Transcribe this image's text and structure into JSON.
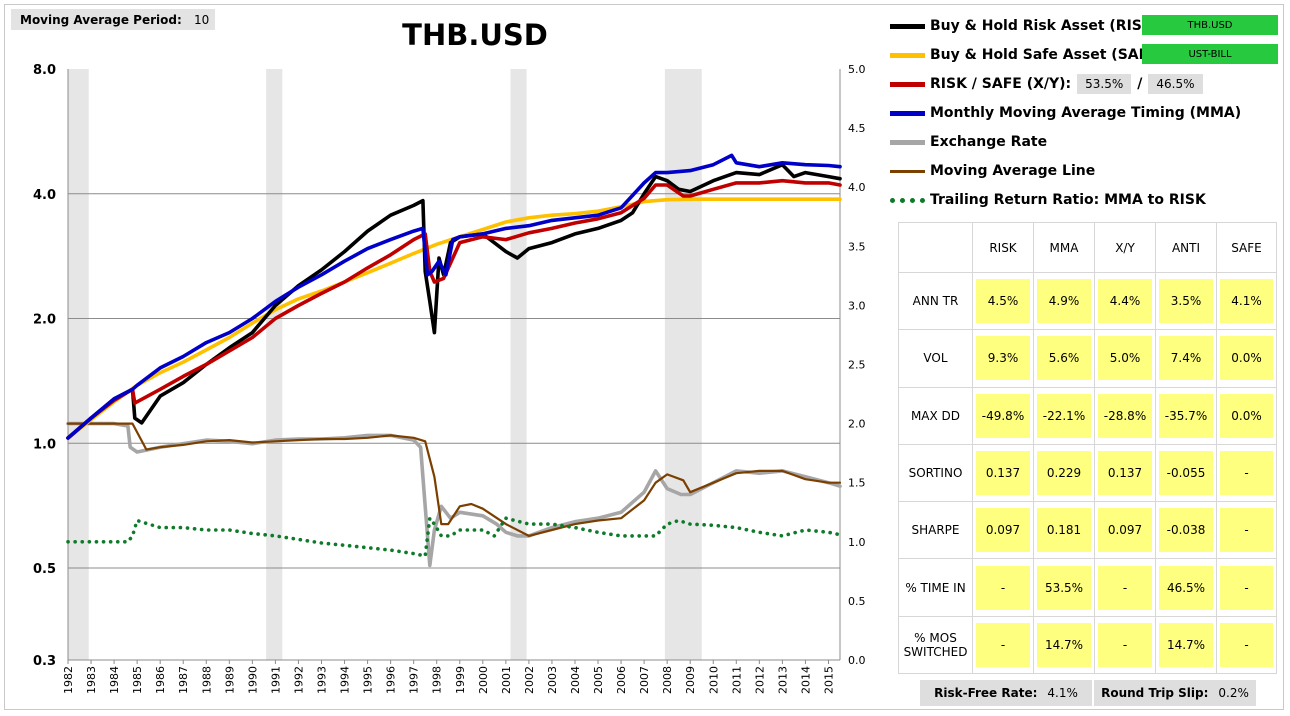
{
  "moving_average": {
    "label": "Moving Average Period:",
    "value": "10"
  },
  "legend": {
    "risk_label": "Buy & Hold Risk Asset (RISK):",
    "risk_tag": "THB.USD",
    "safe_label": "Buy & Hold Safe Asset (SAFE):",
    "safe_tag": "UST-BILL",
    "xy_label": "RISK / SAFE (X/Y):",
    "xy_risk": "53.5%",
    "xy_sep": "/",
    "xy_safe": "46.5%",
    "mma_label": "Monthly Moving Average Timing (MMA)",
    "fx_label": "Exchange Rate",
    "mal_label": "Moving Average Line",
    "trr_label": "Trailing Return Ratio: MMA to RISK"
  },
  "colors": {
    "risk": "#000000",
    "safe": "#ffc000",
    "xy": "#c00000",
    "mma": "#0000c8",
    "fx": "#a6a6a6",
    "mal": "#7b3f00",
    "trr": "#0e7a2a",
    "tag": "#27c93f",
    "cell": "#ffff7f",
    "recession": "#e6e6e6"
  },
  "stats": {
    "headers": [
      "RISK",
      "MMA",
      "X/Y",
      "ANTI",
      "SAFE"
    ],
    "rows": [
      {
        "label": "ANN TR",
        "values": [
          "4.5%",
          "4.9%",
          "4.4%",
          "3.5%",
          "4.1%"
        ]
      },
      {
        "label": "VOL",
        "values": [
          "9.3%",
          "5.6%",
          "5.0%",
          "7.4%",
          "0.0%"
        ]
      },
      {
        "label": "MAX DD",
        "values": [
          "-49.8%",
          "-22.1%",
          "-28.8%",
          "-35.7%",
          "0.0%"
        ]
      },
      {
        "label": "SORTINO",
        "values": [
          "0.137",
          "0.229",
          "0.137",
          "-0.055",
          "-"
        ]
      },
      {
        "label": "SHARPE",
        "values": [
          "0.097",
          "0.181",
          "0.097",
          "-0.038",
          "-"
        ]
      },
      {
        "label": "% TIME IN",
        "values": [
          "-",
          "53.5%",
          "-",
          "46.5%",
          "-"
        ]
      },
      {
        "label": "% MOS SWITCHED",
        "values": [
          "-",
          "14.7%",
          "-",
          "14.7%",
          "-"
        ]
      }
    ]
  },
  "footer": {
    "rf_label": "Risk-Free Rate:",
    "rf_value": "4.1%",
    "slip_label": "Round Trip Slip:",
    "slip_value": "0.2%"
  },
  "chart_data": {
    "type": "line",
    "title": "THB.USD",
    "x_ticks": [
      "1982",
      "1983",
      "1984",
      "1985",
      "1986",
      "1987",
      "1988",
      "1989",
      "1990",
      "1991",
      "1992",
      "1993",
      "1994",
      "1995",
      "1996",
      "1997",
      "1998",
      "1999",
      "2000",
      "2001",
      "2002",
      "2003",
      "2004",
      "2005",
      "2006",
      "2007",
      "2008",
      "2009",
      "2010",
      "2011",
      "2012",
      "2013",
      "2014",
      "2015"
    ],
    "xlim": [
      1982,
      2015.5
    ],
    "left_axis": {
      "scale": "log",
      "ylim": [
        0.3,
        8.0
      ],
      "ticks": [
        "0.3",
        "0.5",
        "1.0",
        "2.0",
        "4.0",
        "8.0"
      ],
      "tick_values": [
        0.3,
        0.5,
        1,
        2,
        4,
        8
      ]
    },
    "right_axis": {
      "scale": "linear",
      "ylim": [
        0,
        5
      ],
      "ticks": [
        "0.0",
        "0.5",
        "1.0",
        "1.5",
        "2.0",
        "2.5",
        "3.0",
        "3.5",
        "4.0",
        "4.5",
        "5.0"
      ]
    },
    "grid": "horizontal",
    "recession_bands": [
      [
        1982.0,
        1982.9
      ],
      [
        1990.6,
        1991.3
      ],
      [
        2001.2,
        2001.9
      ],
      [
        2007.9,
        2009.5
      ]
    ],
    "series": [
      {
        "name": "Buy & Hold Risk Asset (RISK)",
        "axis": "left",
        "key": "risk",
        "x": [
          1982,
          1983,
          1984,
          1984.8,
          1984.9,
          1985.2,
          1986,
          1987,
          1988,
          1989,
          1990,
          1991,
          1992,
          1993,
          1994,
          1995,
          1996,
          1997,
          1997.4,
          1997.5,
          1997.7,
          1997.9,
          1998.1,
          1998.3,
          1998.6,
          1999,
          2000,
          2001,
          2001.5,
          2002,
          2003,
          2004,
          2005,
          2006,
          2006.5,
          2007,
          2007.5,
          2008,
          2008.5,
          2009,
          2010,
          2011,
          2012,
          2013,
          2013.5,
          2014,
          2015,
          2015.5
        ],
        "values": [
          1.03,
          1.15,
          1.28,
          1.35,
          1.15,
          1.12,
          1.3,
          1.4,
          1.55,
          1.7,
          1.85,
          2.15,
          2.4,
          2.62,
          2.9,
          3.25,
          3.55,
          3.75,
          3.85,
          2.6,
          2.2,
          1.85,
          2.8,
          2.55,
          3.05,
          3.15,
          3.2,
          2.9,
          2.8,
          2.95,
          3.05,
          3.2,
          3.3,
          3.45,
          3.6,
          4.0,
          4.4,
          4.3,
          4.1,
          4.05,
          4.3,
          4.5,
          4.45,
          4.7,
          4.4,
          4.5,
          4.4,
          4.35
        ]
      },
      {
        "name": "Buy & Hold Safe Asset (SAFE)",
        "axis": "left",
        "key": "safe",
        "x": [
          1982,
          1983,
          1984,
          1985,
          1986,
          1987,
          1988,
          1989,
          1990,
          1991,
          1992,
          1993,
          1994,
          1995,
          1996,
          1997,
          1998,
          1999,
          2000,
          2001,
          2002,
          2003,
          2004,
          2005,
          2006,
          2007,
          2008,
          2009,
          2010,
          2011,
          2012,
          2013,
          2014,
          2015,
          2015.5
        ],
        "values": [
          1.03,
          1.14,
          1.26,
          1.38,
          1.48,
          1.57,
          1.68,
          1.8,
          1.95,
          2.1,
          2.23,
          2.33,
          2.45,
          2.58,
          2.72,
          2.87,
          3.02,
          3.15,
          3.28,
          3.42,
          3.5,
          3.55,
          3.58,
          3.63,
          3.72,
          3.83,
          3.87,
          3.88,
          3.88,
          3.88,
          3.88,
          3.88,
          3.88,
          3.88,
          3.88
        ]
      },
      {
        "name": "RISK / SAFE (X/Y)",
        "axis": "left",
        "key": "xy",
        "x": [
          1982,
          1983,
          1984,
          1984.8,
          1984.9,
          1986,
          1987,
          1988,
          1989,
          1990,
          1991,
          1992,
          1993,
          1994,
          1995,
          1996,
          1997,
          1997.5,
          1997.7,
          1997.9,
          1998.3,
          1999,
          2000,
          2001,
          2002,
          2003,
          2004,
          2005,
          2006,
          2007,
          2007.5,
          2008,
          2008.7,
          2009,
          2010,
          2011,
          2012,
          2013,
          2014,
          2015,
          2015.5
        ],
        "values": [
          1.03,
          1.15,
          1.27,
          1.35,
          1.25,
          1.35,
          1.45,
          1.55,
          1.67,
          1.8,
          2.0,
          2.15,
          2.3,
          2.45,
          2.65,
          2.85,
          3.1,
          3.2,
          2.6,
          2.45,
          2.5,
          3.05,
          3.15,
          3.1,
          3.22,
          3.3,
          3.4,
          3.48,
          3.6,
          3.9,
          4.2,
          4.2,
          3.95,
          3.95,
          4.1,
          4.25,
          4.25,
          4.3,
          4.25,
          4.25,
          4.2
        ]
      },
      {
        "name": "Monthly Moving Average Timing (MMA)",
        "axis": "left",
        "key": "mma",
        "x": [
          1982,
          1983,
          1984,
          1984.8,
          1985,
          1986,
          1987,
          1988,
          1989,
          1990,
          1991,
          1992,
          1993,
          1994,
          1995,
          1996,
          1997,
          1997.4,
          1997.6,
          1997.8,
          1998.1,
          1998.4,
          1998.7,
          1999,
          2000,
          2001,
          2002,
          2003,
          2004,
          2005,
          2006,
          2007,
          2007.5,
          2008,
          2009,
          2010,
          2010.8,
          2011,
          2012,
          2013,
          2014,
          2015,
          2015.5
        ],
        "values": [
          1.03,
          1.15,
          1.28,
          1.35,
          1.38,
          1.52,
          1.62,
          1.75,
          1.85,
          2.0,
          2.2,
          2.38,
          2.55,
          2.75,
          2.95,
          3.1,
          3.25,
          3.3,
          2.55,
          2.6,
          2.75,
          2.55,
          3.1,
          3.15,
          3.2,
          3.3,
          3.35,
          3.45,
          3.5,
          3.55,
          3.7,
          4.25,
          4.5,
          4.5,
          4.55,
          4.7,
          4.95,
          4.75,
          4.65,
          4.75,
          4.7,
          4.68,
          4.65
        ]
      },
      {
        "name": "Exchange Rate",
        "axis": "right",
        "key": "fx",
        "x": [
          1982,
          1983,
          1984,
          1984.6,
          1984.7,
          1985,
          1986,
          1987,
          1988,
          1989,
          1990,
          1991,
          1992,
          1993,
          1994,
          1995,
          1996,
          1997,
          1997.3,
          1997.5,
          1997.7,
          1997.9,
          1998.2,
          1998.6,
          1999,
          2000,
          2000.6,
          2001,
          2001.5,
          2002,
          2003,
          2004,
          2005,
          2006,
          2007,
          2007.5,
          2008,
          2008.6,
          2009,
          2010,
          2011,
          2012,
          2013,
          2014,
          2015,
          2015.5
        ],
        "values": [
          2.0,
          2.0,
          2.0,
          1.98,
          1.8,
          1.76,
          1.8,
          1.83,
          1.86,
          1.85,
          1.83,
          1.86,
          1.87,
          1.87,
          1.88,
          1.9,
          1.9,
          1.86,
          1.8,
          1.3,
          0.8,
          1.1,
          1.3,
          1.2,
          1.25,
          1.22,
          1.15,
          1.08,
          1.05,
          1.05,
          1.12,
          1.17,
          1.2,
          1.25,
          1.42,
          1.6,
          1.45,
          1.4,
          1.4,
          1.5,
          1.6,
          1.58,
          1.6,
          1.55,
          1.5,
          1.47
        ]
      },
      {
        "name": "Moving Average Line",
        "axis": "right",
        "key": "mal",
        "x": [
          1982,
          1983,
          1984,
          1984.8,
          1985.4,
          1986,
          1987,
          1988,
          1989,
          1990,
          1991,
          1992,
          1993,
          1994,
          1995,
          1996,
          1997,
          1997.5,
          1997.9,
          1998.2,
          1998.5,
          1999,
          1999.5,
          2000,
          2001,
          2002,
          2003,
          2004,
          2005,
          2006,
          2007,
          2007.5,
          2008,
          2008.7,
          2009,
          2010,
          2011,
          2012,
          2013,
          2014,
          2015,
          2015.5
        ],
        "values": [
          2.0,
          2.0,
          2.0,
          2.0,
          1.78,
          1.8,
          1.82,
          1.85,
          1.86,
          1.84,
          1.85,
          1.86,
          1.87,
          1.87,
          1.88,
          1.9,
          1.88,
          1.85,
          1.55,
          1.15,
          1.15,
          1.3,
          1.32,
          1.28,
          1.15,
          1.05,
          1.1,
          1.15,
          1.18,
          1.2,
          1.35,
          1.5,
          1.57,
          1.52,
          1.42,
          1.5,
          1.58,
          1.6,
          1.6,
          1.53,
          1.5,
          1.5
        ]
      },
      {
        "name": "Trailing Return Ratio: MMA to RISK",
        "axis": "right",
        "key": "trr",
        "style": "dots",
        "x": [
          1982,
          1983,
          1984,
          1984.6,
          1984.8,
          1985,
          1986,
          1987,
          1988,
          1989,
          1990,
          1991,
          1992,
          1993,
          1994,
          1995,
          1996,
          1997,
          1997.5,
          1997.7,
          1997.9,
          1998.2,
          1998.6,
          1999,
          2000,
          2000.5,
          2001,
          2002,
          2003,
          2004,
          2005,
          2006,
          2007,
          2007.5,
          2008,
          2008.5,
          2009,
          2010,
          2011,
          2012,
          2013,
          2014,
          2015,
          2015.5
        ],
        "values": [
          1.0,
          1.0,
          1.0,
          1.0,
          1.05,
          1.18,
          1.12,
          1.12,
          1.1,
          1.1,
          1.07,
          1.05,
          1.02,
          0.99,
          0.97,
          0.95,
          0.93,
          0.9,
          0.88,
          1.2,
          1.15,
          1.05,
          1.05,
          1.1,
          1.1,
          1.05,
          1.2,
          1.15,
          1.15,
          1.12,
          1.08,
          1.05,
          1.05,
          1.05,
          1.15,
          1.18,
          1.15,
          1.14,
          1.12,
          1.08,
          1.05,
          1.1,
          1.08,
          1.06
        ]
      }
    ]
  }
}
